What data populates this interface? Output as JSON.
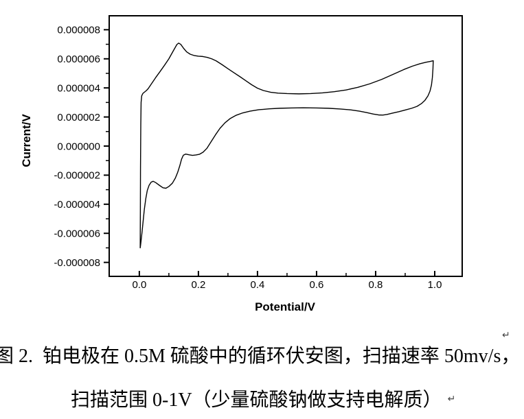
{
  "colors": {
    "curve": "#000000",
    "axis": "#000000",
    "text": "#000000",
    "mark_gray": "#444444"
  },
  "chart_data": {
    "type": "line",
    "title": "",
    "xlabel": "Potential/V",
    "ylabel": "Current/V",
    "xlim": [
      -0.102,
      1.093
    ],
    "ylim_e6": [
      -8.96,
      8.96
    ],
    "grid": false,
    "legend": null,
    "x_major_ticks": [
      {
        "v": 0.0,
        "label": "0.0"
      },
      {
        "v": 0.2,
        "label": "0.2"
      },
      {
        "v": 0.4,
        "label": "0.4"
      },
      {
        "v": 0.6,
        "label": "0.6"
      },
      {
        "v": 0.8,
        "label": "0.8"
      },
      {
        "v": 1.0,
        "label": "1.0"
      }
    ],
    "x_minor_ticks": [
      0.1,
      0.3,
      0.5,
      0.7,
      0.9
    ],
    "y_major_ticks": [
      {
        "v": 8,
        "label": "0.000008"
      },
      {
        "v": 6,
        "label": "0.000006"
      },
      {
        "v": 4,
        "label": "0.000004"
      },
      {
        "v": 2,
        "label": "0.000002"
      },
      {
        "v": 0,
        "label": "0.000000"
      },
      {
        "v": -2,
        "label": "-0.000002"
      },
      {
        "v": -4,
        "label": "-0.000004"
      },
      {
        "v": -6,
        "label": "-0.000006"
      },
      {
        "v": -8,
        "label": "-0.000008"
      }
    ],
    "y_minor_ticks": [
      7,
      5,
      3,
      1,
      -1,
      -3,
      -5,
      -7
    ],
    "series": [
      {
        "name": "cyclic-voltammogram-loop",
        "points_v_ie6": [
          [
            0.003,
            -7.0
          ],
          [
            0.0035,
            -4.5
          ],
          [
            0.004,
            -1.5
          ],
          [
            0.005,
            1.5
          ],
          [
            0.006,
            3.0
          ],
          [
            0.008,
            3.45
          ],
          [
            0.012,
            3.62
          ],
          [
            0.018,
            3.72
          ],
          [
            0.024,
            3.82
          ],
          [
            0.03,
            3.95
          ],
          [
            0.04,
            4.25
          ],
          [
            0.055,
            4.7
          ],
          [
            0.07,
            5.12
          ],
          [
            0.085,
            5.55
          ],
          [
            0.1,
            6.0
          ],
          [
            0.115,
            6.55
          ],
          [
            0.127,
            6.98
          ],
          [
            0.133,
            7.08
          ],
          [
            0.14,
            7.0
          ],
          [
            0.15,
            6.72
          ],
          [
            0.16,
            6.48
          ],
          [
            0.172,
            6.32
          ],
          [
            0.185,
            6.23
          ],
          [
            0.2,
            6.18
          ],
          [
            0.215,
            6.16
          ],
          [
            0.23,
            6.1
          ],
          [
            0.245,
            6.0
          ],
          [
            0.26,
            5.86
          ],
          [
            0.28,
            5.6
          ],
          [
            0.3,
            5.32
          ],
          [
            0.32,
            5.05
          ],
          [
            0.34,
            4.78
          ],
          [
            0.36,
            4.5
          ],
          [
            0.38,
            4.22
          ],
          [
            0.4,
            3.98
          ],
          [
            0.42,
            3.82
          ],
          [
            0.445,
            3.7
          ],
          [
            0.47,
            3.64
          ],
          [
            0.5,
            3.61
          ],
          [
            0.54,
            3.59
          ],
          [
            0.58,
            3.61
          ],
          [
            0.62,
            3.66
          ],
          [
            0.66,
            3.74
          ],
          [
            0.7,
            3.86
          ],
          [
            0.74,
            4.04
          ],
          [
            0.78,
            4.28
          ],
          [
            0.82,
            4.58
          ],
          [
            0.86,
            4.94
          ],
          [
            0.895,
            5.26
          ],
          [
            0.925,
            5.5
          ],
          [
            0.95,
            5.66
          ],
          [
            0.97,
            5.76
          ],
          [
            0.985,
            5.82
          ],
          [
            0.995,
            5.87
          ],
          [
            0.994,
            5.3
          ],
          [
            0.992,
            4.7
          ],
          [
            0.989,
            4.2
          ],
          [
            0.984,
            3.78
          ],
          [
            0.977,
            3.45
          ],
          [
            0.967,
            3.15
          ],
          [
            0.955,
            2.92
          ],
          [
            0.94,
            2.73
          ],
          [
            0.922,
            2.6
          ],
          [
            0.9,
            2.48
          ],
          [
            0.878,
            2.36
          ],
          [
            0.856,
            2.26
          ],
          [
            0.838,
            2.17
          ],
          [
            0.824,
            2.13
          ],
          [
            0.81,
            2.14
          ],
          [
            0.792,
            2.2
          ],
          [
            0.77,
            2.3
          ],
          [
            0.745,
            2.4
          ],
          [
            0.715,
            2.49
          ],
          [
            0.68,
            2.55
          ],
          [
            0.64,
            2.6
          ],
          [
            0.6,
            2.62
          ],
          [
            0.555,
            2.63
          ],
          [
            0.515,
            2.62
          ],
          [
            0.475,
            2.6
          ],
          [
            0.44,
            2.56
          ],
          [
            0.405,
            2.5
          ],
          [
            0.375,
            2.4
          ],
          [
            0.35,
            2.28
          ],
          [
            0.328,
            2.12
          ],
          [
            0.308,
            1.9
          ],
          [
            0.29,
            1.6
          ],
          [
            0.273,
            1.22
          ],
          [
            0.258,
            0.78
          ],
          [
            0.243,
            0.3
          ],
          [
            0.229,
            -0.15
          ],
          [
            0.216,
            -0.42
          ],
          [
            0.204,
            -0.56
          ],
          [
            0.192,
            -0.61
          ],
          [
            0.18,
            -0.64
          ],
          [
            0.168,
            -0.6
          ],
          [
            0.157,
            -0.55
          ],
          [
            0.149,
            -0.63
          ],
          [
            0.143,
            -0.9
          ],
          [
            0.137,
            -1.35
          ],
          [
            0.13,
            -1.8
          ],
          [
            0.122,
            -2.2
          ],
          [
            0.112,
            -2.55
          ],
          [
            0.1,
            -2.78
          ],
          [
            0.09,
            -2.9
          ],
          [
            0.08,
            -2.87
          ],
          [
            0.068,
            -2.7
          ],
          [
            0.056,
            -2.52
          ],
          [
            0.047,
            -2.42
          ],
          [
            0.04,
            -2.48
          ],
          [
            0.033,
            -2.7
          ],
          [
            0.027,
            -3.05
          ],
          [
            0.022,
            -3.6
          ],
          [
            0.017,
            -4.35
          ],
          [
            0.013,
            -5.15
          ],
          [
            0.009,
            -5.95
          ],
          [
            0.006,
            -6.5
          ],
          [
            0.004,
            -6.85
          ],
          [
            0.003,
            -7.0
          ]
        ]
      }
    ]
  },
  "caption": {
    "line1": "图 2.  铂电极在 0.5M 硫酸中的循环伏安图，扫描速率 50mv/s，",
    "line2": "扫描范围 0-1V（少量硫酸钠做支持电解质）",
    "pilcrow": "↵"
  }
}
